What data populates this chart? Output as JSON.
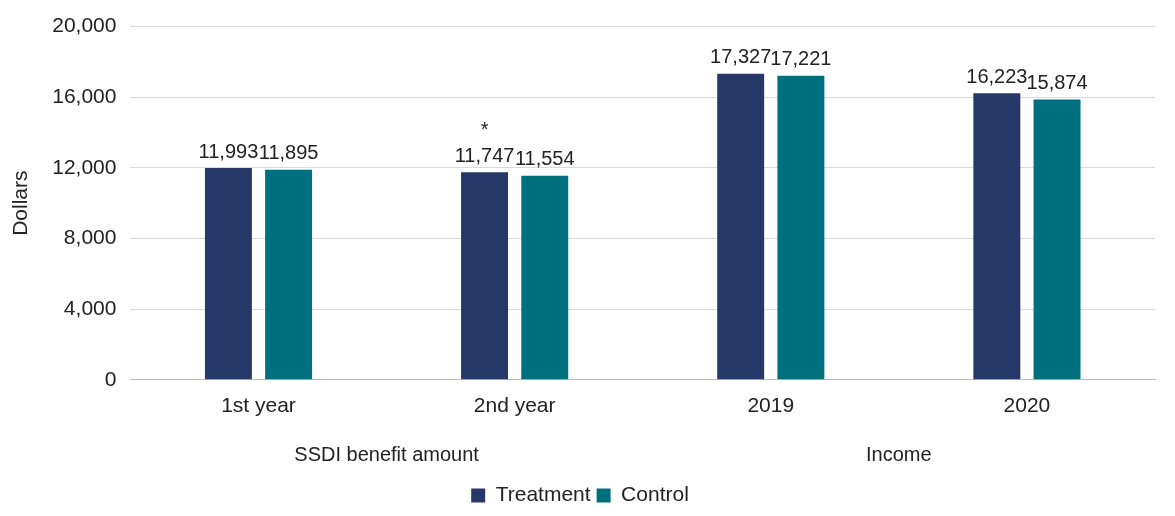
{
  "chart_data": {
    "type": "bar",
    "ylabel": "Dollars",
    "categories": [
      "1st year",
      "2nd year",
      "2019",
      "2020"
    ],
    "series": [
      {
        "name": "Treatment",
        "color": "#253868",
        "values": [
          11993,
          11747,
          17327,
          16223
        ],
        "value_labels": [
          "11,993",
          "11,747",
          "17,327",
          "16,223"
        ]
      },
      {
        "name": "Control",
        "color": "#00707f",
        "values": [
          11895,
          11554,
          17221,
          15874
        ],
        "value_labels": [
          "11,895",
          "11,554",
          "17,221",
          "15,874"
        ]
      }
    ],
    "ylim": [
      0,
      20000
    ],
    "yticks": [
      {
        "value": 0,
        "label": "0"
      },
      {
        "value": 4000,
        "label": "4,000"
      },
      {
        "value": 8000,
        "label": "8,000"
      },
      {
        "value": 12000,
        "label": "12,000"
      },
      {
        "value": 16000,
        "label": "16,000"
      },
      {
        "value": 20000,
        "label": "20,000"
      }
    ],
    "grid": "y",
    "legend": "bottom",
    "annotations": [
      "*",
      "SSDI benefit amount",
      "Income"
    ]
  }
}
